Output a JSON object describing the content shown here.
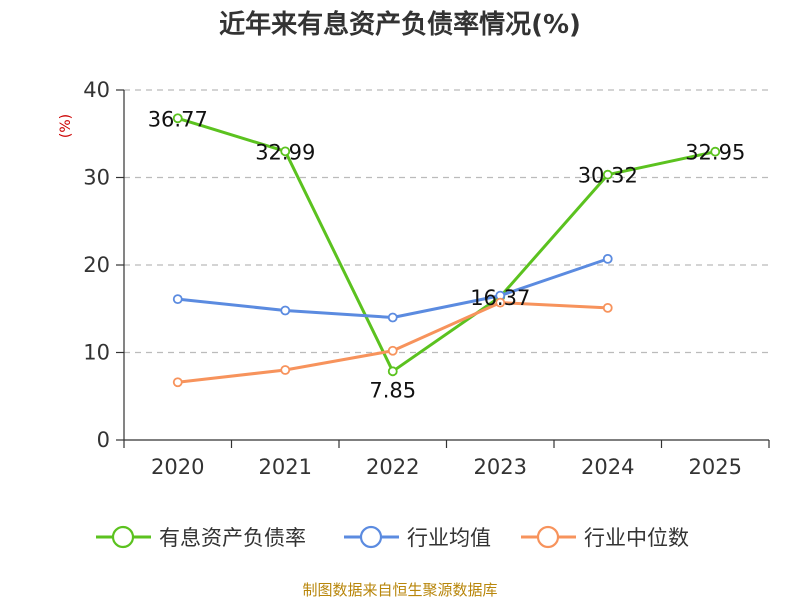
{
  "chart_data": {
    "type": "line",
    "title": "近年来有息资产负债率情况(%)",
    "ylabel": "(%)",
    "xlabel": "",
    "categories": [
      "2020",
      "2021",
      "2022",
      "2023",
      "2024",
      "2025"
    ],
    "ylim": [
      0,
      40
    ],
    "yticks": [
      0,
      10,
      20,
      30,
      40
    ],
    "grid": true,
    "legend_position": "bottom",
    "series": [
      {
        "name": "有息资产负债率",
        "color": "#5bc21f",
        "values": [
          36.77,
          32.99,
          7.85,
          16.37,
          30.32,
          32.95
        ],
        "labels": [
          "36.77",
          "32.99",
          "7.85",
          "16.37",
          "30.32",
          "32.95"
        ]
      },
      {
        "name": "行业均值",
        "color": "#5b8be0",
        "values": [
          16.1,
          14.8,
          14.0,
          16.5,
          20.7,
          null
        ]
      },
      {
        "name": "行业中位数",
        "color": "#f7935c",
        "values": [
          6.6,
          8.0,
          10.2,
          15.7,
          15.1,
          null
        ]
      }
    ],
    "source": "制图数据来自恒生聚源数据库"
  }
}
